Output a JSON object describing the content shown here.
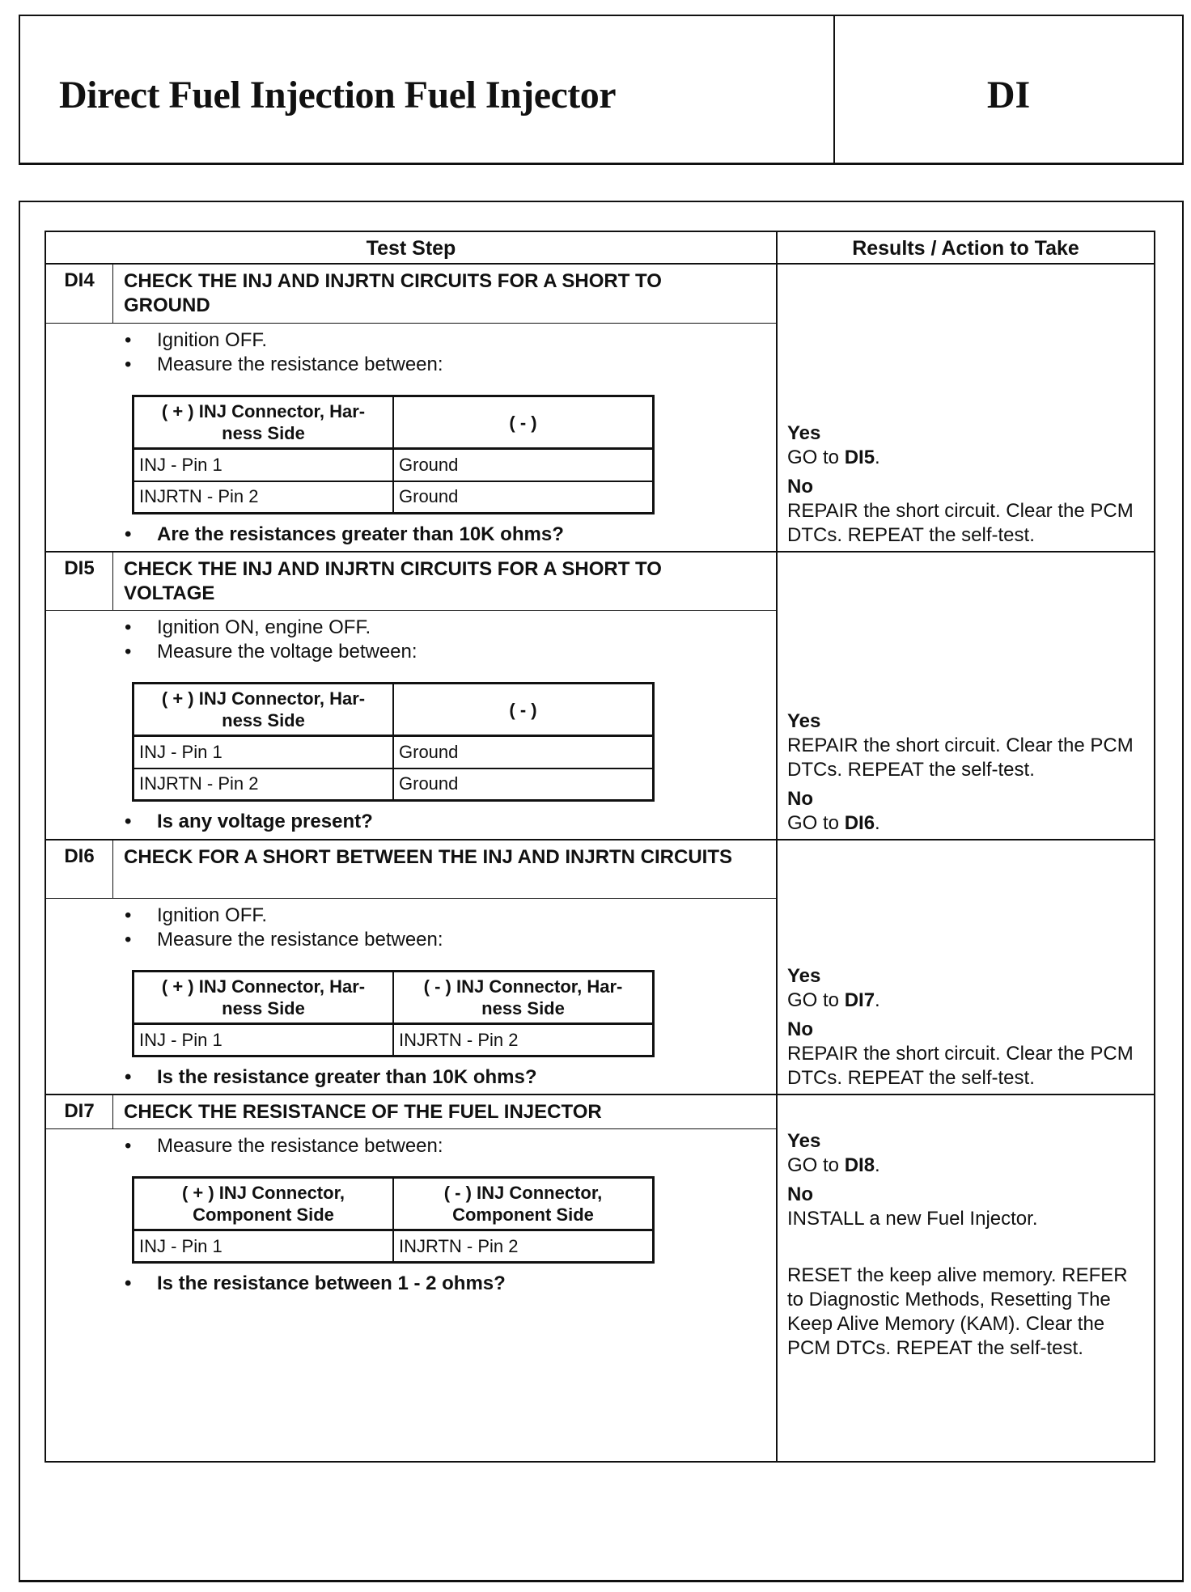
{
  "header": {
    "title": "Direct Fuel Injection Fuel Injector",
    "code": "DI"
  },
  "table": {
    "col_test_step": "Test Step",
    "col_results": "Results / Action to Take"
  },
  "steps": [
    {
      "id": "DI4",
      "title": "CHECK THE INJ AND INJRTN CIRCUITS FOR A SHORT TO GROUND",
      "bullets": [
        "Ignition OFF.",
        "Measure the resistance between:"
      ],
      "inner": {
        "headers": [
          [
            "( + ) INJ Connector, Har-",
            "ness Side"
          ],
          [
            "( - )"
          ]
        ],
        "rows": [
          [
            "INJ - Pin 1",
            "Ground"
          ],
          [
            "INJRTN - Pin 2",
            "Ground"
          ]
        ]
      },
      "question": "Are the resistances greater than 10K ohms?",
      "results": {
        "yes_label": "Yes",
        "yes_text": "GO to ",
        "yes_ref": "DI5",
        "yes_end": ".",
        "no_label": "No",
        "no_text": "REPAIR the short circuit. Clear the PCM DTCs. REPEAT the self-test."
      }
    },
    {
      "id": "DI5",
      "title": "CHECK THE INJ AND INJRTN CIRCUITS FOR A SHORT TO VOLTAGE",
      "bullets": [
        "Ignition ON, engine OFF.",
        "Measure the voltage between:"
      ],
      "inner": {
        "headers": [
          [
            "( + ) INJ Connector, Har-",
            "ness Side"
          ],
          [
            "( - )"
          ]
        ],
        "rows": [
          [
            "INJ - Pin 1",
            "Ground"
          ],
          [
            "INJRTN - Pin 2",
            "Ground"
          ]
        ]
      },
      "question": "Is any voltage present?",
      "results": {
        "yes_label": "Yes",
        "yes_text": "REPAIR the short circuit. Clear the PCM DTCs. REPEAT the self-test.",
        "no_label": "No",
        "no_text": "GO to ",
        "no_ref": "DI6",
        "no_end": "."
      }
    },
    {
      "id": "DI6",
      "title": "CHECK FOR A SHORT BETWEEN THE INJ AND INJRTN CIRCUITS",
      "bullets": [
        "Ignition OFF.",
        "Measure the resistance between:"
      ],
      "inner": {
        "headers": [
          [
            "( + ) INJ Connector, Har-",
            "ness Side"
          ],
          [
            "( - ) INJ Connector, Har-",
            "ness Side"
          ]
        ],
        "rows": [
          [
            "INJ - Pin 1",
            "INJRTN - Pin 2"
          ]
        ]
      },
      "question": "Is the resistance greater than 10K ohms?",
      "results": {
        "yes_label": "Yes",
        "yes_text": "GO to ",
        "yes_ref": "DI7",
        "yes_end": ".",
        "no_label": "No",
        "no_text": "REPAIR the short circuit. Clear the PCM DTCs. REPEAT the self-test."
      }
    },
    {
      "id": "DI7",
      "title": "CHECK THE RESISTANCE OF THE FUEL INJECTOR",
      "bullets": [
        "Measure the resistance between:"
      ],
      "inner": {
        "headers": [
          [
            "( + ) INJ Connector,",
            "Component Side"
          ],
          [
            "( - ) INJ Connector,",
            "Component Side"
          ]
        ],
        "rows": [
          [
            "INJ - Pin 1",
            "INJRTN - Pin 2"
          ]
        ]
      },
      "question": "Is the resistance between 1 - 2 ohms?",
      "results": {
        "yes_label": "Yes",
        "yes_text": "GO to ",
        "yes_ref": "DI8",
        "yes_end": ".",
        "no_label": "No",
        "no_text": "INSTALL a new Fuel Injector.",
        "extra": "RESET the keep alive memory. REFER to Diagnostic Methods, Resetting The Keep Alive Memory (KAM). Clear the PCM DTCs. REPEAT the self-test."
      }
    }
  ]
}
